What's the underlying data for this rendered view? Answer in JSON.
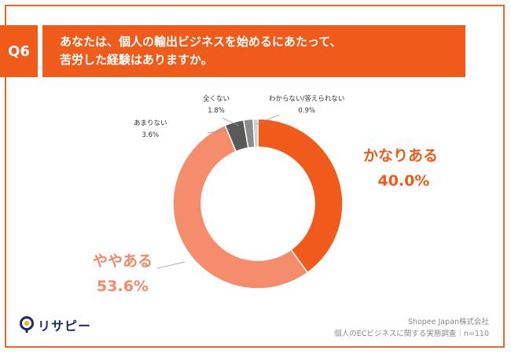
{
  "question": {
    "number": "Q6",
    "line1": "あなたは、個人の輸出ビジネスを始めるにあたって、",
    "line2": "苦労した経験はありますか。"
  },
  "chart_data": {
    "type": "pie",
    "categories": [
      "かなりある",
      "ややある",
      "あまりない",
      "全くない",
      "わからない/答えられない"
    ],
    "values": [
      40.0,
      53.6,
      3.6,
      1.8,
      0.9
    ],
    "value_labels": [
      "40.0%",
      "53.6%",
      "3.6%",
      "1.8%",
      "0.9%"
    ],
    "colors": [
      "#f05a1a",
      "#f58c6c",
      "#595959",
      "#8c8c8c",
      "#cfcfcf"
    ]
  },
  "footer": {
    "logo_text": "リサピー",
    "company": "Shopee Japan株式会社",
    "survey": "個人のECビジネスに関する実態調査｜n=110"
  }
}
